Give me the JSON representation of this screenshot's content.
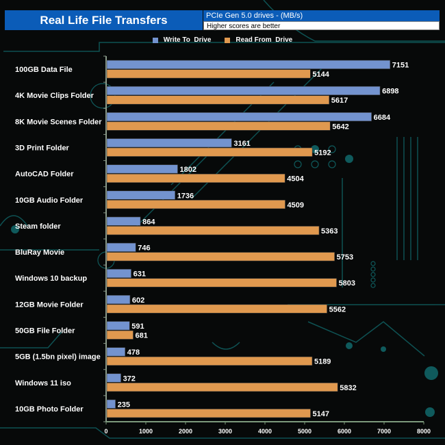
{
  "header": {
    "title": "Real Life File Transfers",
    "subtitle": "PCIe Gen 5.0 drives - (MB/s)",
    "note": "Higher scores are better"
  },
  "colors": {
    "write": "#7393cf",
    "read": "#e0994f",
    "title_bg": "#0b5cb8",
    "background": "#070909",
    "circuit": "#0f5a5c"
  },
  "chart_data": {
    "type": "bar",
    "orientation": "horizontal",
    "title": "Real Life File Transfers",
    "subtitle": "PCIe Gen 5.0 drives - (MB/s)",
    "xlabel": "",
    "ylabel": "",
    "xlim": [
      0,
      8000
    ],
    "xticks": [
      0,
      1000,
      2000,
      3000,
      4000,
      5000,
      6000,
      7000,
      8000
    ],
    "grid": false,
    "legend_position": "top-center",
    "categories": [
      "100GB Data File",
      "4K Movie Clips Folder",
      "8K Movie Scenes Folder",
      "3D Print Folder",
      "AutoCAD Folder",
      "10GB Audio Folder",
      "Steam folder",
      "BluRay Movie",
      "Windows 10 backup",
      "12GB Movie Folder",
      "50GB File Folder",
      "5GB (1.5bn pixel) image",
      "Windows 11 iso",
      "10GB Photo Folder"
    ],
    "series": [
      {
        "name": "Write To  Drive",
        "values": [
          7151,
          6898,
          6684,
          3161,
          1802,
          1736,
          864,
          746,
          631,
          602,
          591,
          478,
          372,
          235
        ]
      },
      {
        "name": "Read From  Drive",
        "values": [
          5144,
          5617,
          5642,
          5192,
          4504,
          4509,
          5363,
          5753,
          5803,
          5562,
          681,
          5189,
          5832,
          5147
        ]
      }
    ]
  }
}
